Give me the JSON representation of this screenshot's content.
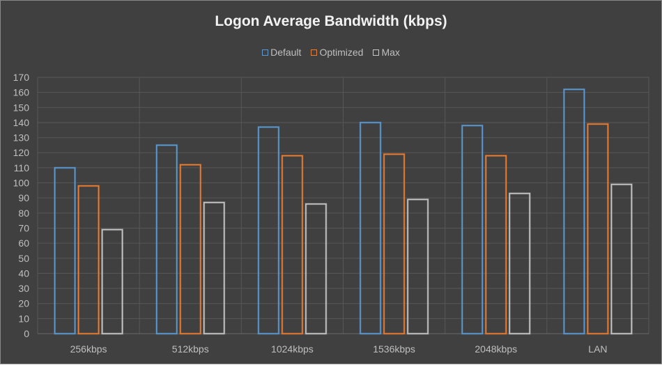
{
  "chart_data": {
    "type": "bar",
    "title": "Logon Average Bandwidth (kbps)",
    "categories": [
      "256kbps",
      "512kbps",
      "1024kbps",
      "1536kbps",
      "2048kbps",
      "LAN"
    ],
    "series": [
      {
        "name": "Default",
        "color": "#5b9bd5",
        "values": [
          110,
          125,
          137,
          140,
          138,
          162
        ]
      },
      {
        "name": "Optimized",
        "color": "#ed7d31",
        "values": [
          98,
          112,
          118,
          119,
          118,
          139
        ]
      },
      {
        "name": "Max",
        "color": "#c8c8c8",
        "values": [
          69,
          87,
          86,
          89,
          93,
          99
        ]
      }
    ],
    "ylim": [
      0,
      170
    ],
    "ytick_step": 10,
    "grid": true,
    "legend": "top-center",
    "xlabel": "",
    "ylabel": ""
  }
}
